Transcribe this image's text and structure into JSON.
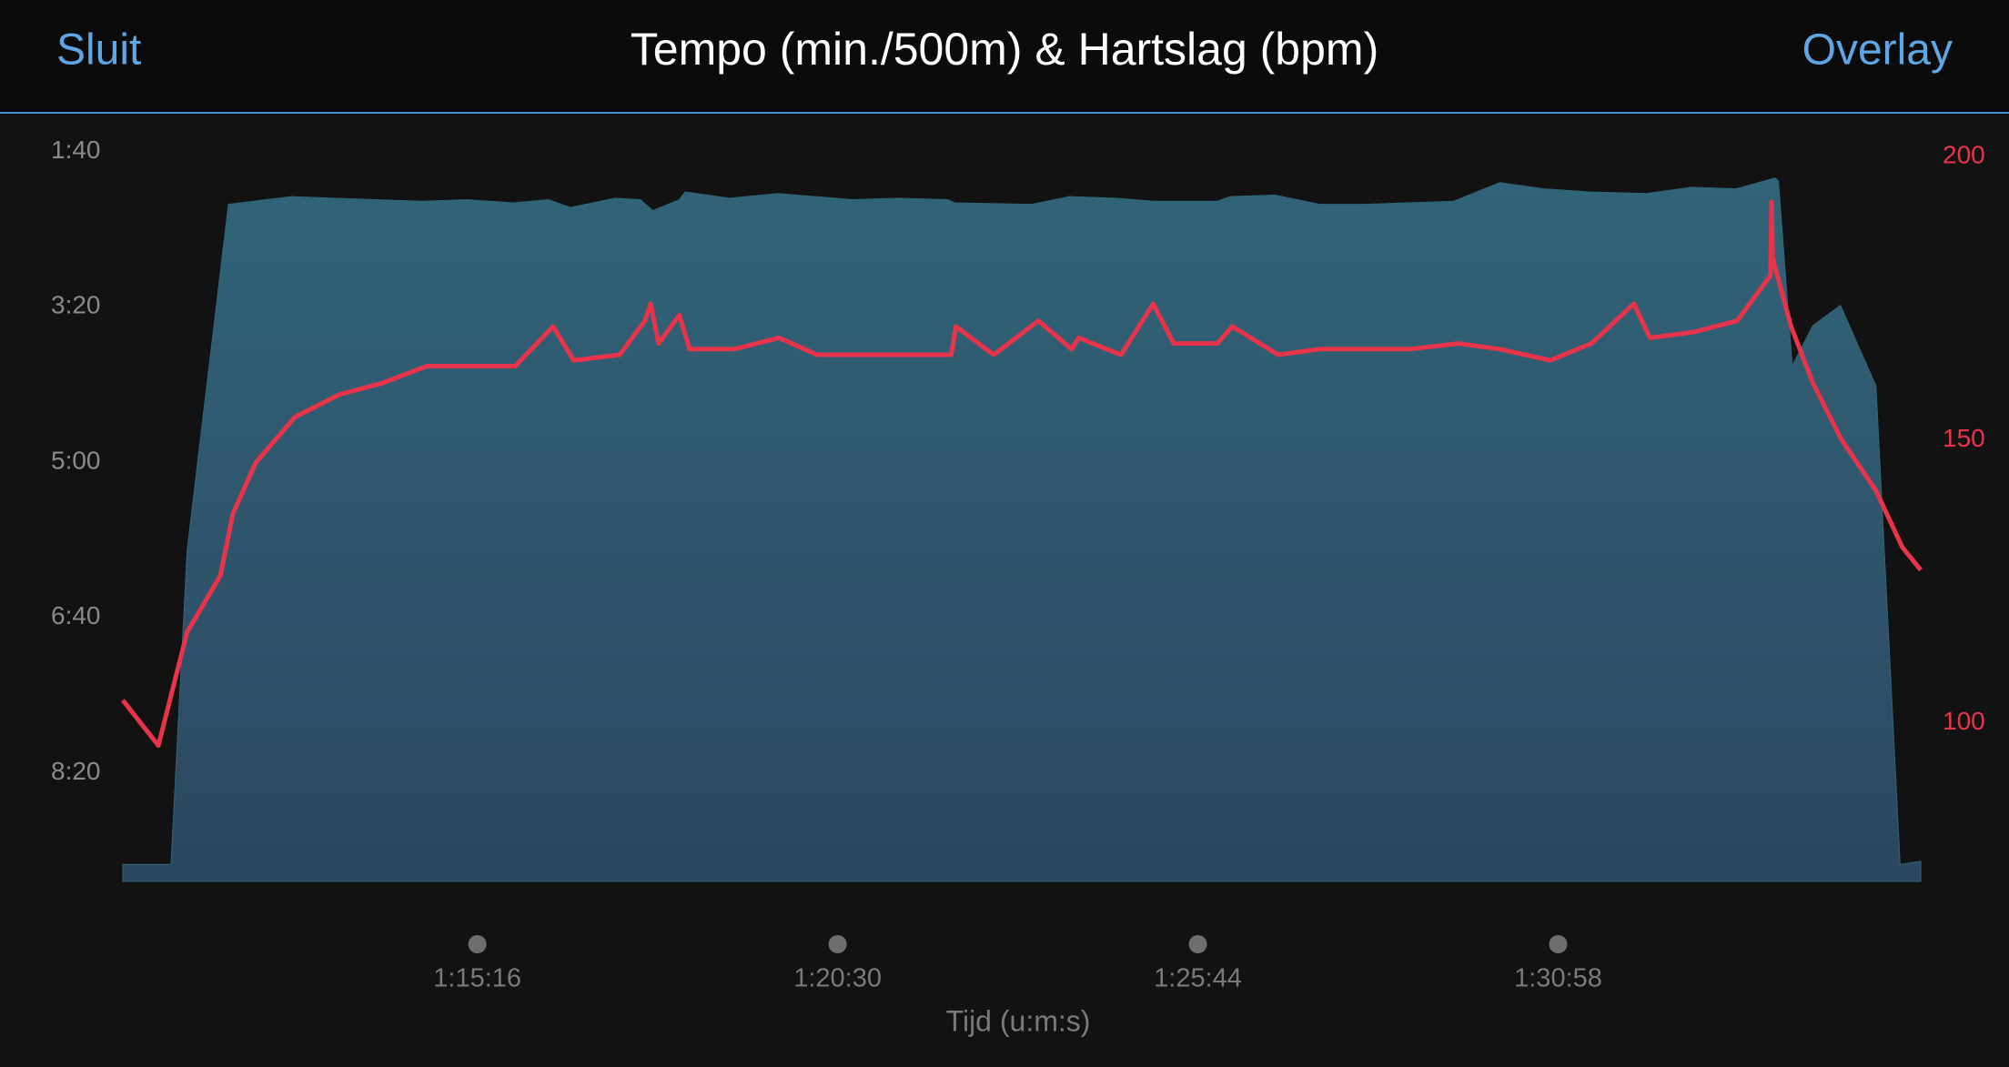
{
  "header": {
    "close": "Sluit",
    "overlay": "Overlay"
  },
  "chart_data": {
    "type": "area-line",
    "title": "Tempo (min./500m) & Hartslag (bpm)",
    "x_label": "Tijd (u:m:s)",
    "xlim": [
      4207,
      5774
    ],
    "xticks": [
      {
        "value": 4516,
        "label": "1:15:16"
      },
      {
        "value": 4830,
        "label": "1:20:30"
      },
      {
        "value": 5144,
        "label": "1:25:44"
      },
      {
        "value": 5458,
        "label": "1:30:58"
      }
    ],
    "ylim": [
      570,
      85
    ],
    "yticks": [
      {
        "value": 100,
        "label": "1:40"
      },
      {
        "value": 200,
        "label": "3:20"
      },
      {
        "value": 300,
        "label": "5:00"
      },
      {
        "value": 400,
        "label": "6:40"
      },
      {
        "value": 500,
        "label": "8:20"
      }
    ],
    "y2lim": [
      72,
      205
    ],
    "y2ticks": [
      100,
      150,
      200
    ],
    "series": [
      {
        "type": "area",
        "color": "#316478",
        "x": [
          4207,
          4249,
          4263,
          4299,
          4354,
          4390,
          4468,
          4507,
          4547,
          4578,
          4597,
          4636,
          4658,
          4669,
          4692,
          4697,
          4736,
          4778,
          4843,
          4882,
          4926,
          4932,
          4999,
          5032,
          5072,
          5105,
          5161,
          5172,
          5211,
          5250,
          5289,
          5367,
          5407,
          5446,
          5485,
          5535,
          5574,
          5613,
          5647,
          5650,
          5662,
          5680,
          5704,
          5735,
          5756,
          5774
        ],
        "values": [
          559,
          559,
          357,
          134,
          129,
          130,
          132,
          131,
          133,
          131,
          136,
          130,
          131,
          138,
          131,
          126,
          130,
          127,
          131,
          130,
          131,
          133,
          134,
          129,
          130,
          132,
          132,
          129,
          128,
          134,
          134,
          132,
          120,
          124,
          126,
          127,
          123,
          124,
          117,
          119,
          238,
          212,
          199,
          251,
          559,
          557
        ]
      },
      {
        "type": "line",
        "color": "#e8344a",
        "axis": "y2",
        "x": [
          4207,
          4238,
          4263,
          4292,
          4303,
          4323,
          4357,
          4396,
          4433,
          4472,
          4549,
          4582,
          4600,
          4640,
          4662,
          4667,
          4674,
          4692,
          4701,
          4740,
          4779,
          4812,
          4929,
          4933,
          4966,
          5005,
          5034,
          5040,
          5077,
          5105,
          5123,
          5161,
          5174,
          5214,
          5250,
          5329,
          5371,
          5407,
          5451,
          5487,
          5524,
          5538,
          5576,
          5614,
          5643,
          5644,
          5645,
          5661,
          5680,
          5705,
          5735,
          5758,
          5774
        ],
        "values": [
          104,
          96,
          116,
          126,
          137,
          146,
          154,
          158,
          160,
          163,
          163,
          170,
          164,
          165,
          171,
          174,
          167,
          172,
          166,
          166,
          168,
          165,
          165,
          170,
          165,
          171,
          166,
          168,
          165,
          174,
          167,
          167,
          170,
          165,
          166,
          166,
          167,
          166,
          164,
          167,
          174,
          168,
          169,
          171,
          179,
          192,
          182,
          170,
          160,
          150,
          141,
          131,
          127
        ]
      }
    ]
  }
}
